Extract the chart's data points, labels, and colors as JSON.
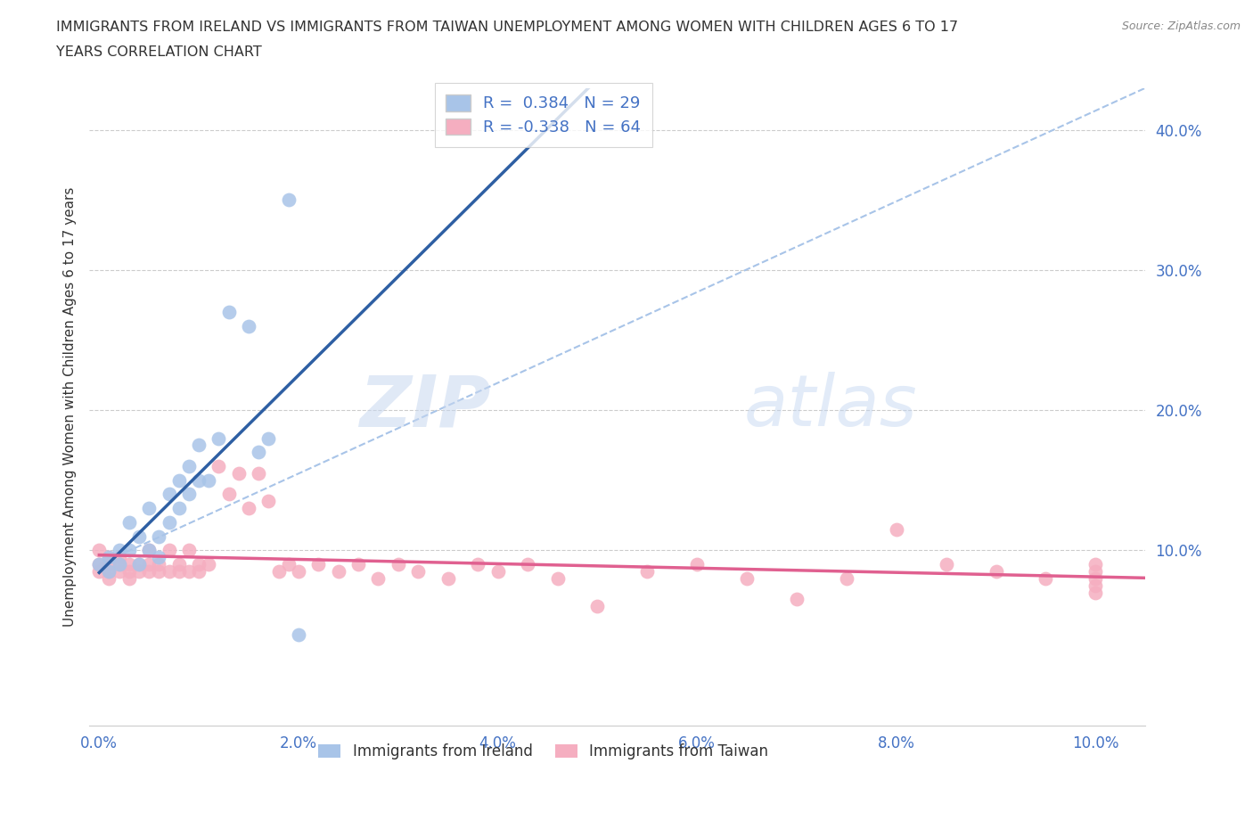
{
  "title_line1": "IMMIGRANTS FROM IRELAND VS IMMIGRANTS FROM TAIWAN UNEMPLOYMENT AMONG WOMEN WITH CHILDREN AGES 6 TO 17",
  "title_line2": "YEARS CORRELATION CHART",
  "source": "Source: ZipAtlas.com",
  "ylabel": "Unemployment Among Women with Children Ages 6 to 17 years",
  "watermark_zip": "ZIP",
  "watermark_atlas": "atlas",
  "legend_r_ireland": "R=  0.384",
  "legend_n_ireland": "N = 29",
  "legend_r_taiwan": "R= -0.338",
  "legend_n_taiwan": "N = 64",
  "ireland_color": "#a8c4e8",
  "taiwan_color": "#f5aec0",
  "ireland_line_color": "#2e5fa3",
  "taiwan_line_color": "#e06090",
  "trend_line_color": "#a8c4e8",
  "xlim": [
    -0.001,
    0.105
  ],
  "ylim": [
    -0.025,
    0.43
  ],
  "xticks": [
    0.0,
    0.02,
    0.04,
    0.06,
    0.08,
    0.1
  ],
  "yticks": [
    0.1,
    0.2,
    0.3,
    0.4
  ],
  "background_color": "#ffffff",
  "ireland_x": [
    0.0,
    0.001,
    0.001,
    0.002,
    0.002,
    0.003,
    0.003,
    0.004,
    0.004,
    0.005,
    0.005,
    0.006,
    0.006,
    0.007,
    0.007,
    0.008,
    0.008,
    0.009,
    0.009,
    0.01,
    0.01,
    0.011,
    0.012,
    0.013,
    0.015,
    0.016,
    0.017,
    0.019,
    0.02
  ],
  "ireland_y": [
    0.09,
    0.085,
    0.095,
    0.09,
    0.1,
    0.1,
    0.12,
    0.09,
    0.11,
    0.1,
    0.13,
    0.11,
    0.095,
    0.12,
    0.14,
    0.13,
    0.15,
    0.14,
    0.16,
    0.15,
    0.175,
    0.15,
    0.18,
    0.27,
    0.26,
    0.17,
    0.18,
    0.35,
    0.04
  ],
  "taiwan_x": [
    0.0,
    0.0,
    0.0,
    0.001,
    0.001,
    0.001,
    0.001,
    0.002,
    0.002,
    0.002,
    0.003,
    0.003,
    0.003,
    0.004,
    0.004,
    0.005,
    0.005,
    0.005,
    0.006,
    0.006,
    0.007,
    0.007,
    0.008,
    0.008,
    0.009,
    0.009,
    0.01,
    0.01,
    0.011,
    0.012,
    0.013,
    0.014,
    0.015,
    0.016,
    0.017,
    0.018,
    0.019,
    0.02,
    0.022,
    0.024,
    0.026,
    0.028,
    0.03,
    0.032,
    0.035,
    0.038,
    0.04,
    0.043,
    0.046,
    0.05,
    0.055,
    0.06,
    0.065,
    0.07,
    0.075,
    0.08,
    0.085,
    0.09,
    0.095,
    0.1,
    0.1,
    0.1,
    0.1,
    0.1
  ],
  "taiwan_y": [
    0.1,
    0.09,
    0.085,
    0.095,
    0.09,
    0.085,
    0.08,
    0.095,
    0.09,
    0.085,
    0.09,
    0.085,
    0.08,
    0.09,
    0.085,
    0.1,
    0.09,
    0.085,
    0.09,
    0.085,
    0.1,
    0.085,
    0.09,
    0.085,
    0.1,
    0.085,
    0.09,
    0.085,
    0.09,
    0.16,
    0.14,
    0.155,
    0.13,
    0.155,
    0.135,
    0.085,
    0.09,
    0.085,
    0.09,
    0.085,
    0.09,
    0.08,
    0.09,
    0.085,
    0.08,
    0.09,
    0.085,
    0.09,
    0.08,
    0.06,
    0.085,
    0.09,
    0.08,
    0.065,
    0.08,
    0.115,
    0.09,
    0.085,
    0.08,
    0.09,
    0.085,
    0.075,
    0.08,
    0.07
  ]
}
